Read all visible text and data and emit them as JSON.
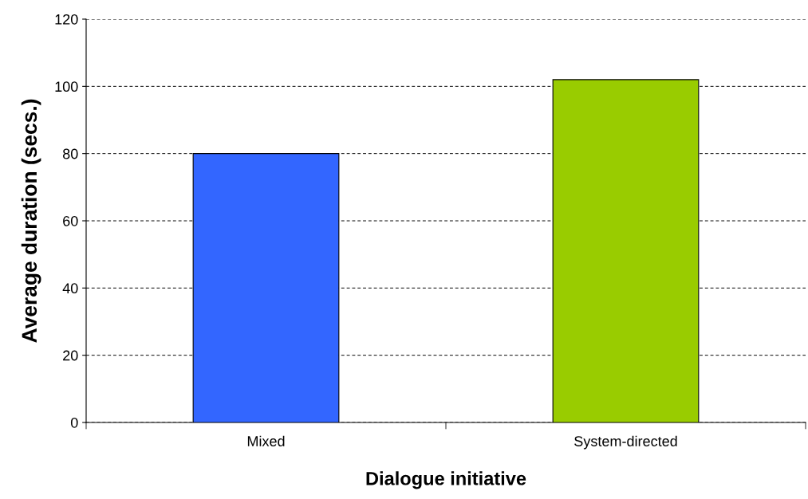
{
  "chart_data": {
    "type": "bar",
    "xlabel": "Dialogue initiative",
    "ylabel": "Average duration (secs.)",
    "categories": [
      "Mixed",
      "System-directed"
    ],
    "values": [
      80,
      102
    ],
    "colors": [
      "#3366ff",
      "#99cc00"
    ],
    "ylim": [
      0,
      120
    ],
    "yticks": [
      0,
      20,
      40,
      60,
      80,
      100,
      120
    ],
    "grid": "y",
    "legend": false
  }
}
